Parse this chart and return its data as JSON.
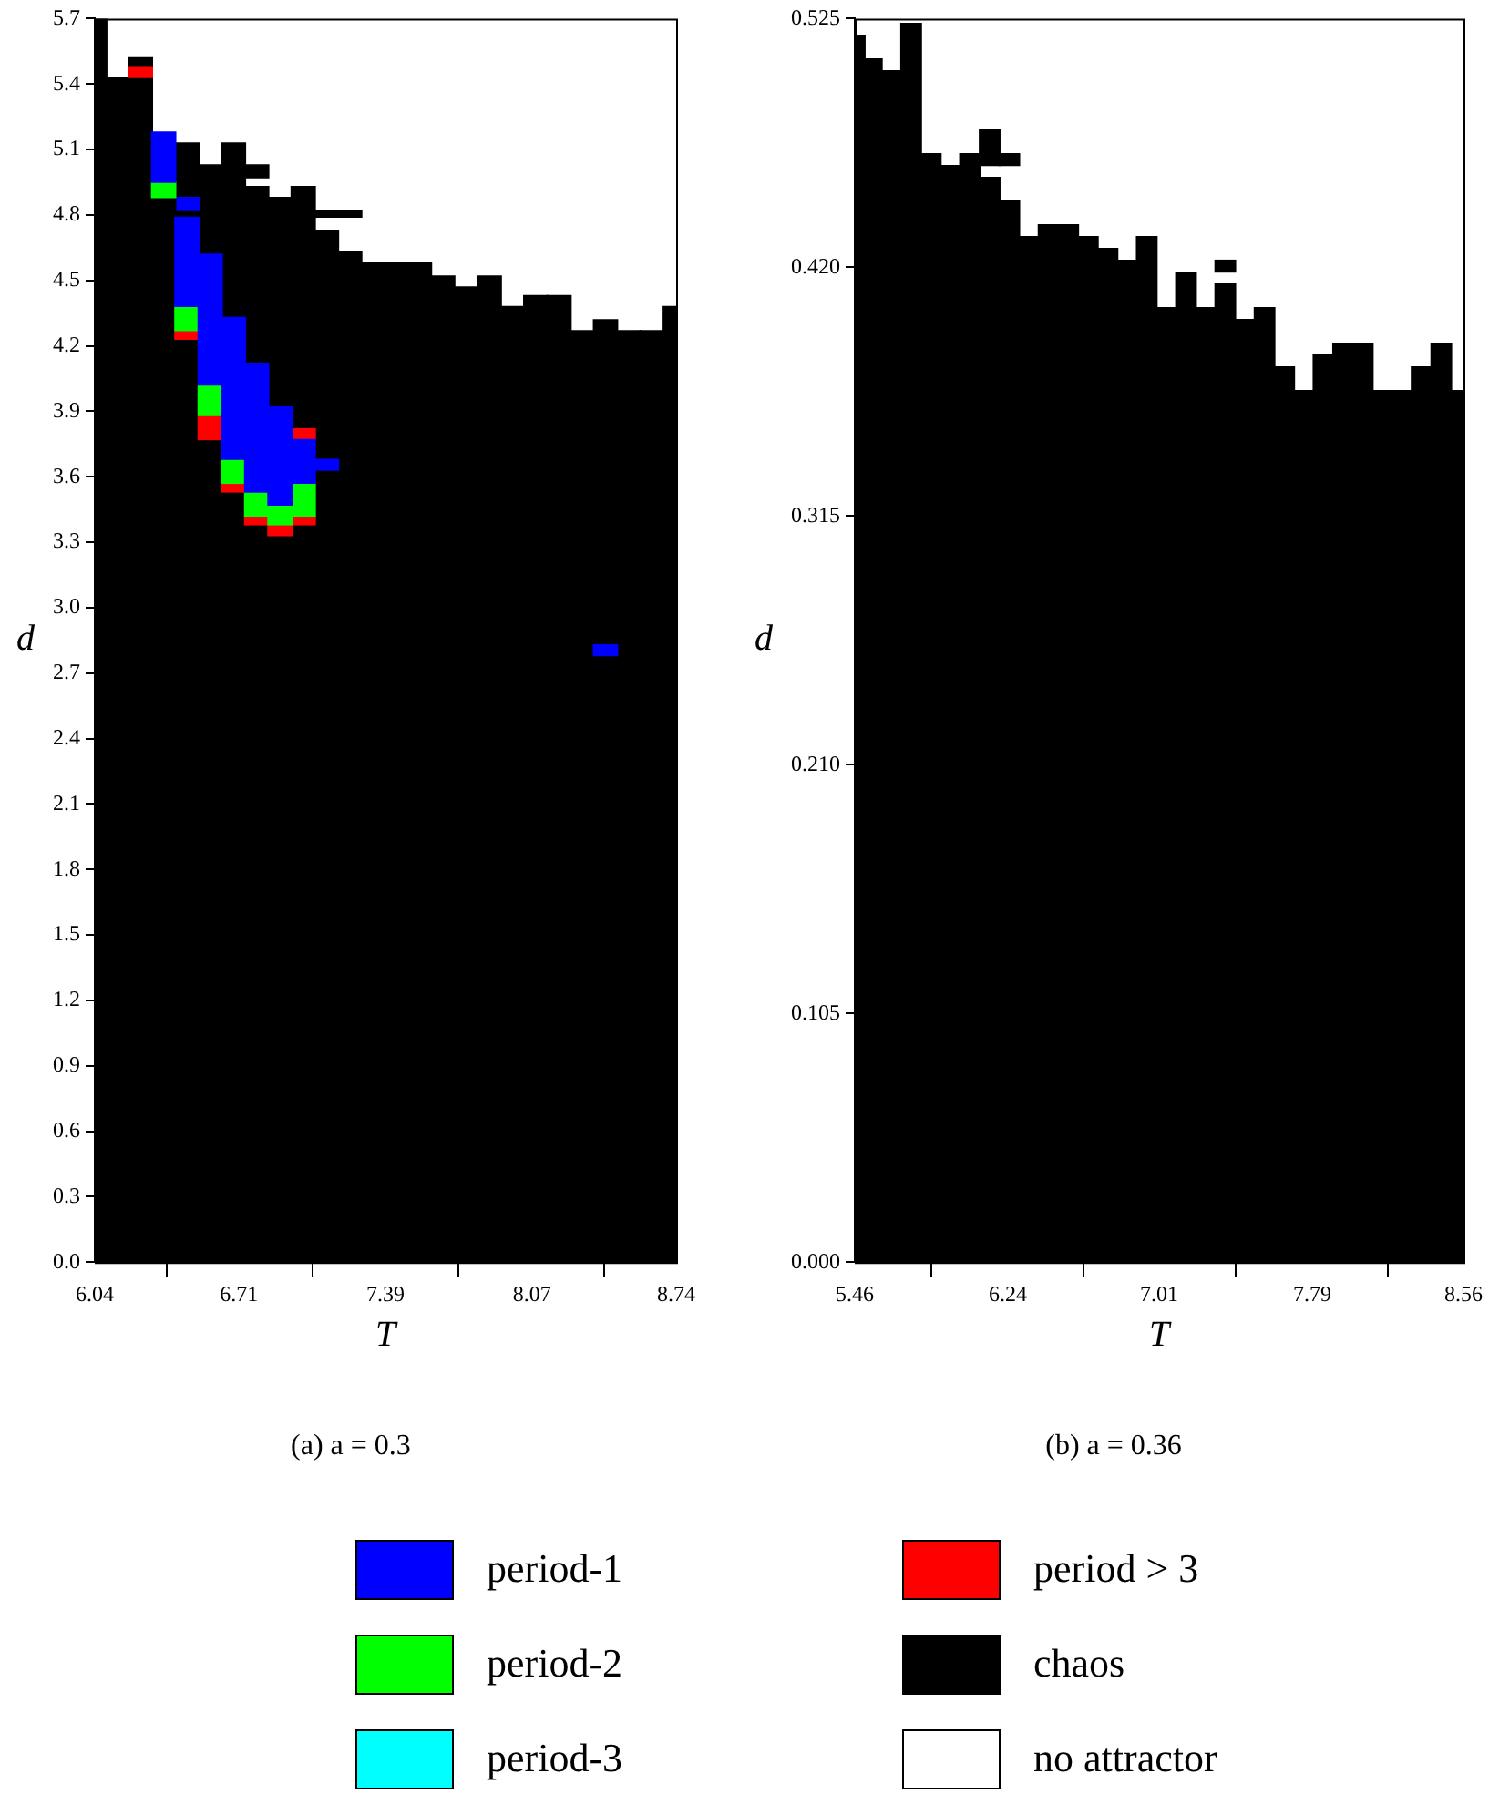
{
  "chart_data": [
    {
      "type": "bar",
      "title": "(a) a = 0.3",
      "xlabel": "T",
      "ylabel": "d",
      "xlim": [
        6.04,
        8.74
      ],
      "xticks": [
        6.04,
        6.71,
        7.39,
        8.07,
        8.74
      ],
      "ylim": [
        0,
        5.7
      ],
      "yticks": [
        {
          "value": 0,
          "label": "0.0"
        },
        0.3,
        0.6,
        0.9,
        1.2,
        1.5,
        1.8,
        2.1,
        2.4,
        2.7,
        {
          "value": 3,
          "label": "3.0"
        },
        3.3,
        3.6,
        3.9,
        4.2,
        4.5,
        4.8,
        5.1,
        5.4,
        5.7
      ],
      "grid": false,
      "legend": "bottom",
      "series": [
        {
          "name": "period-1",
          "color": "#0000ff",
          "x": [
            6.36,
            6.468,
            6.576,
            6.684,
            6.792,
            6.9,
            7.008,
            7.116,
            8.412
          ],
          "base": [
            4.95,
            4.38,
            4.02,
            3.68,
            3.53,
            3.47,
            3.57,
            3.63,
            2.78
          ],
          "values": [
            0.23,
            0.41,
            0.6,
            0.65,
            0.59,
            0.45,
            0.2,
            0.05,
            0.05
          ]
        },
        {
          "name": "period-2",
          "color": "#00ff00",
          "x": [
            6.36,
            6.468,
            6.576,
            6.684,
            6.792,
            6.9,
            7.008
          ],
          "base": [
            4.88,
            4.27,
            3.88,
            3.57,
            3.42,
            3.38,
            3.42
          ],
          "values": [
            0.07,
            0.11,
            0.14,
            0.11,
            0.11,
            0.09,
            0.15
          ]
        },
        {
          "name": "period-3",
          "color": "#00ffff"
        },
        {
          "name": "period > 3",
          "color": "#ff0000",
          "x": [
            6.252,
            6.468,
            6.576,
            6.684,
            6.792,
            6.9,
            7.008
          ],
          "base": [
            5.43,
            4.23,
            3.77,
            3.53,
            3.38,
            3.33,
            3.38
          ],
          "values": [
            0.05,
            0.04,
            0.11,
            0.04,
            0.04,
            0.05,
            0.04
          ]
        },
        {
          "name": "chaos",
          "color": "#000000",
          "x": [
            6.04,
            6.144,
            6.252,
            6.36,
            6.468,
            6.576,
            6.684,
            6.792,
            6.9,
            7.008,
            7.116,
            7.224,
            7.332,
            7.44,
            7.548,
            7.656,
            7.764,
            7.872,
            7.98,
            8.088,
            8.196,
            8.304,
            8.412,
            8.52,
            8.628,
            8.736
          ],
          "base": [
            0,
            0,
            0,
            0,
            0,
            0,
            0,
            0,
            0,
            0,
            0,
            0,
            0,
            0,
            0,
            0,
            0,
            0,
            0,
            0,
            0,
            0,
            0,
            0,
            0,
            0
          ],
          "values": [
            5.7,
            5.43,
            5.43,
            4.88,
            4.23,
            3.77,
            3.53,
            3.38,
            3.33,
            3.38,
            3.63,
            4.63,
            4.58,
            4.58,
            4.58,
            4.52,
            4.47,
            4.52,
            4.38,
            4.43,
            4.43,
            4.27,
            2.78,
            4.27,
            4.27,
            4.38
          ]
        },
        {
          "name": "no attractor",
          "color": "#ffffff"
        },
        {
          "color": "#0000ff",
          "x": [
            6.468
          ],
          "base": [
            4.82
          ],
          "values": [
            0.06
          ]
        },
        {
          "color": "#ff0000",
          "x": [
            7.008
          ],
          "base": [
            3.77
          ],
          "values": [
            0.05
          ]
        },
        {
          "color": "#000000",
          "x": [
            6.252,
            6.468,
            6.576,
            6.684,
            6.792,
            6.9,
            7.008,
            7.116,
            7.224,
            8.412
          ],
          "base": [
            5.48,
            4.79,
            4.62,
            4.33,
            4.12,
            3.92,
            3.82,
            3.68,
            4.79,
            2.83
          ],
          "values": [
            0.04,
            0.03,
            0.41,
            0.8,
            0.81,
            0.96,
            1.11,
            1.05,
            0.03,
            1.49
          ]
        },
        {
          "color": "#000000",
          "x": [
            6.468,
            6.792,
            7.116
          ],
          "base": [
            4.88,
            4.97,
            4.79
          ],
          "values": [
            0.25,
            0.06,
            0.03
          ]
        }
      ]
    },
    {
      "type": "bar",
      "title": "(b) a = 0.36",
      "xlabel": "T",
      "ylabel": "d",
      "xlim": [
        5.46,
        8.56
      ],
      "xticks": [
        5.46,
        6.24,
        7.01,
        7.79,
        8.56
      ],
      "ylim": [
        0,
        0.525
      ],
      "yticks": [
        {
          "value": 0,
          "label": "0.000"
        },
        0.105,
        {
          "value": 0.21,
          "label": "0.210"
        },
        0.315,
        {
          "value": 0.42,
          "label": "0.420"
        },
        0.525
      ],
      "grid": false,
      "series": [
        {
          "color": "#000000",
          "x": [
            5.46,
            5.547,
            5.647,
            5.747,
            5.847,
            5.947,
            6.047,
            6.147,
            6.247,
            6.347,
            6.447,
            6.547,
            6.647,
            6.747,
            6.847,
            6.947,
            7.047,
            7.147,
            7.247,
            7.347,
            7.447,
            7.547,
            7.647,
            7.747,
            7.847,
            7.947,
            8.047,
            8.147,
            8.247,
            8.347,
            8.447,
            8.547
          ],
          "base": [
            0,
            0,
            0,
            0,
            0,
            0,
            0,
            0,
            0,
            0,
            0,
            0,
            0,
            0,
            0,
            0,
            0,
            0,
            0,
            0,
            0,
            0,
            0,
            0,
            0,
            0,
            0,
            0,
            0,
            0,
            0,
            0
          ],
          "values": [
            0.518,
            0.508,
            0.503,
            0.523,
            0.468,
            0.463,
            0.468,
            0.458,
            0.448,
            0.433,
            0.438,
            0.438,
            0.433,
            0.428,
            0.423,
            0.433,
            0.403,
            0.418,
            0.403,
            0.413,
            0.398,
            0.403,
            0.378,
            0.368,
            0.383,
            0.388,
            0.388,
            0.368,
            0.368,
            0.378,
            0.388,
            0.368
          ]
        },
        {
          "color": "#000000",
          "x": [
            6.147,
            6.247,
            7.347
          ],
          "base": [
            0.463,
            0.463,
            0.418
          ],
          "values": [
            0.015,
            0.005,
            0.005
          ]
        }
      ]
    }
  ]
}
